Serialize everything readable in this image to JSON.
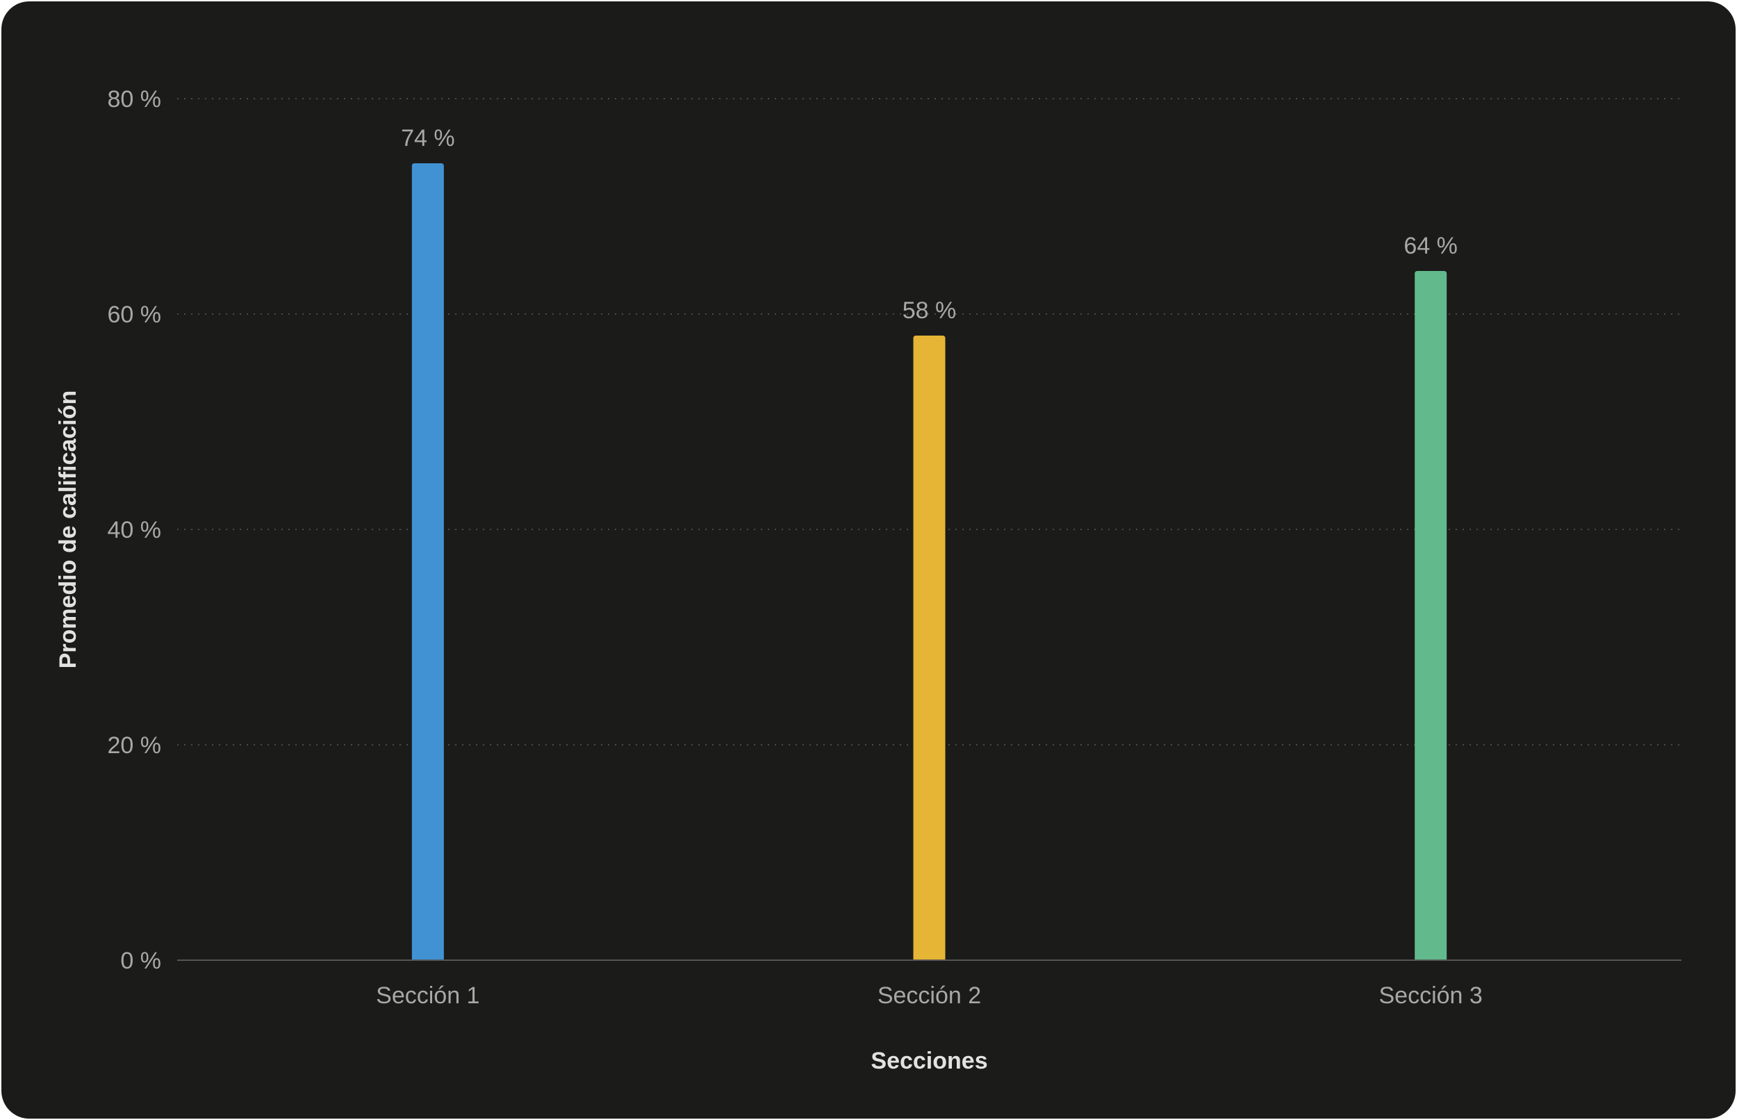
{
  "chart_data": {
    "type": "bar",
    "title": "",
    "xlabel": "Secciones",
    "ylabel": "Promedio de calificación",
    "categories": [
      "Sección 1",
      "Sección 2",
      "Sección 3"
    ],
    "values": [
      74,
      58,
      64
    ],
    "value_labels": [
      "74 %",
      "58 %",
      "64 %"
    ],
    "colors": [
      "#4192d3",
      "#e6b535",
      "#62b98c"
    ],
    "ylim": [
      0,
      80
    ],
    "yticks": [
      0,
      20,
      40,
      60,
      80
    ],
    "ytick_labels": [
      "0 %",
      "20 %",
      "40 %",
      "60 %",
      "80 %"
    ],
    "grid": true,
    "legend": "none"
  }
}
